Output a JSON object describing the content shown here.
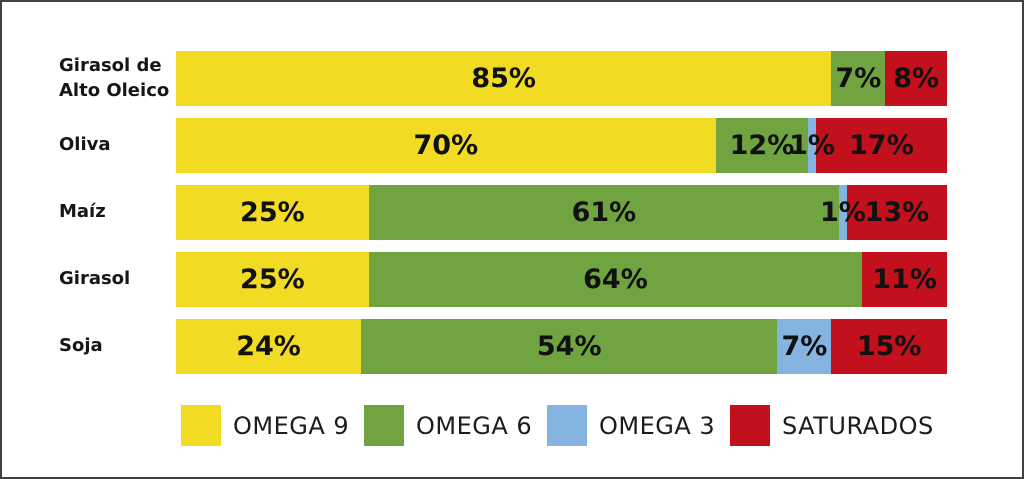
{
  "frame": {
    "background": "#ffffff",
    "border_color": "#424242",
    "text_color": "#111111"
  },
  "chart_data": {
    "type": "bar",
    "orientation": "horizontal_stacked",
    "title": "",
    "xlabel": "",
    "ylabel": "",
    "xlim": [
      0,
      100
    ],
    "grid": false,
    "legend_position": "bottom",
    "value_suffix": "%",
    "categories": [
      "Girasol de Alto Oleico",
      "Oliva",
      "Maíz",
      "Girasol",
      "Soja"
    ],
    "series": [
      {
        "name": "OMEGA 9",
        "color": "#F1DC23",
        "values": [
          85,
          70,
          25,
          25,
          24
        ]
      },
      {
        "name": "OMEGA 6",
        "color": "#6FA441",
        "values": [
          7,
          12,
          61,
          64,
          54
        ]
      },
      {
        "name": "OMEGA 3",
        "color": "#85B4E0",
        "values": [
          0,
          1,
          1,
          0,
          7
        ]
      },
      {
        "name": "SATURADOS",
        "color": "#C2101D",
        "values": [
          8,
          17,
          13,
          11,
          15
        ]
      }
    ]
  }
}
